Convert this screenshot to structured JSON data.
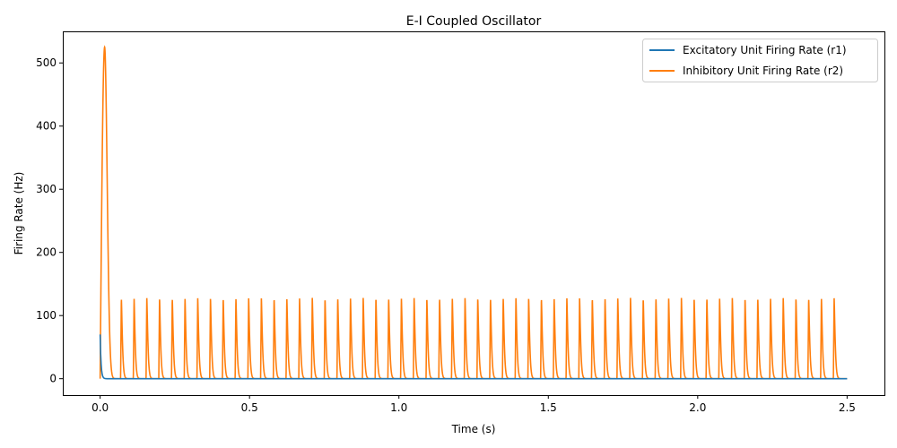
{
  "chart_data": {
    "type": "line",
    "title": "E-I Coupled Oscillator",
    "xlabel": "Time (s)",
    "ylabel": "Firing Rate (Hz)",
    "xlim": [
      -0.125,
      2.625
    ],
    "ylim": [
      -26,
      550
    ],
    "xticks": [
      0.0,
      0.5,
      1.0,
      1.5,
      2.0,
      2.5
    ],
    "xtick_labels": [
      "0.0",
      "0.5",
      "1.0",
      "1.5",
      "2.0",
      "2.5"
    ],
    "yticks": [
      0,
      100,
      200,
      300,
      400,
      500
    ],
    "ytick_labels": [
      "0",
      "100",
      "200",
      "300",
      "400",
      "500"
    ],
    "grid": false,
    "legend_position": "top-right",
    "series": [
      {
        "name": "Excitatory Unit Firing Rate (r1)",
        "color": "#1f77b4",
        "initial_value": 70,
        "decay_time": 0.003,
        "baseline": 0,
        "t_end": 2.5
      },
      {
        "name": "Inhibitory Unit Firing Rate (r2)",
        "color": "#ff7f0e",
        "initial_peak": 525,
        "initial_peak_time": 0.015,
        "spike_amplitude": 128,
        "spike_period": 0.0426,
        "first_spike_time": 0.071,
        "last_spike_time": 2.473,
        "baseline": 0,
        "t_end": 2.5
      }
    ]
  }
}
